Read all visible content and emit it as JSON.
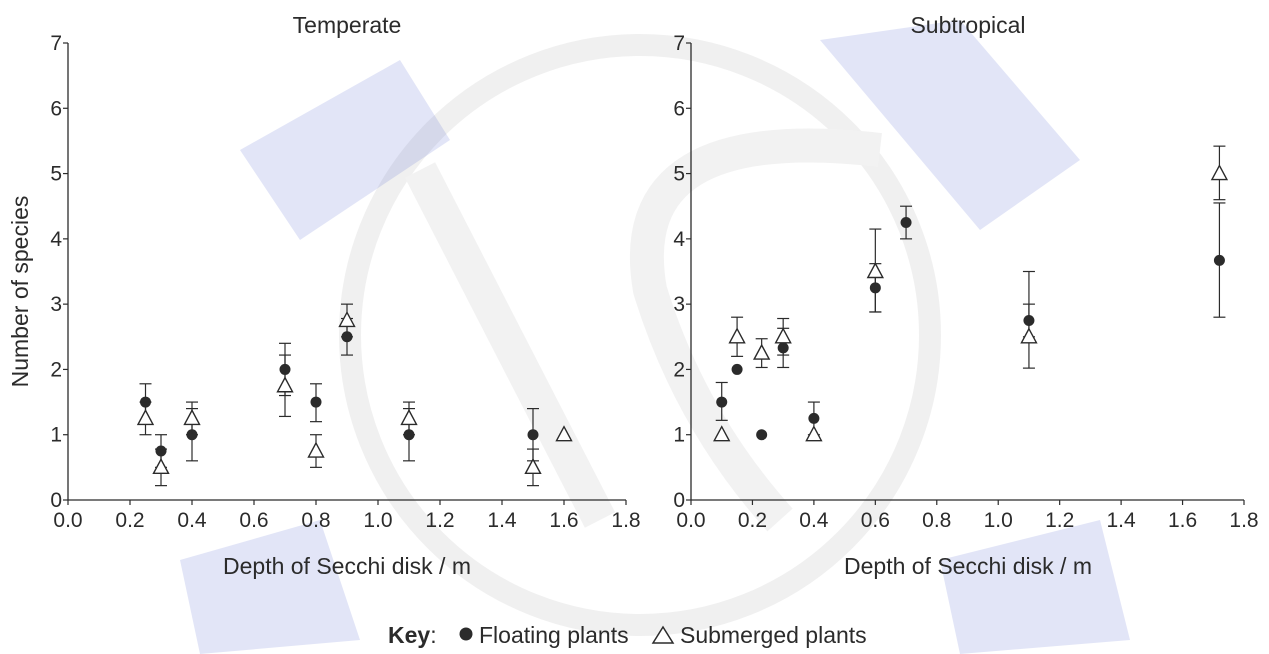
{
  "chart_data": [
    {
      "type": "scatter",
      "title": "Temperate",
      "xlabel": "Depth of Secchi disk / m",
      "ylabel": "Number of species",
      "xlim": [
        0.0,
        1.8
      ],
      "ylim": [
        0,
        7
      ],
      "x_ticks": [
        "0.0",
        "0.2",
        "0.4",
        "0.6",
        "0.8",
        "1.0",
        "1.2",
        "1.4",
        "1.6",
        "1.8"
      ],
      "y_ticks": [
        "0",
        "1",
        "2",
        "3",
        "4",
        "5",
        "6",
        "7"
      ],
      "grid": false,
      "series": [
        {
          "name": "Floating plants",
          "marker": "filled-circle",
          "points": [
            {
              "x": 0.25,
              "y": 1.5,
              "err_low": 1.22,
              "err_high": 1.78
            },
            {
              "x": 0.3,
              "y": 0.75,
              "err_low": 0.5,
              "err_high": 1.0
            },
            {
              "x": 0.4,
              "y": 1.0,
              "err_low": 0.6,
              "err_high": 1.4
            },
            {
              "x": 0.7,
              "y": 2.0,
              "err_low": 1.6,
              "err_high": 2.4
            },
            {
              "x": 0.8,
              "y": 1.5,
              "err_low": 1.2,
              "err_high": 1.78
            },
            {
              "x": 0.9,
              "y": 2.5,
              "err_low": 2.22,
              "err_high": 2.78
            },
            {
              "x": 1.1,
              "y": 1.0,
              "err_low": 0.6,
              "err_high": 1.4
            },
            {
              "x": 1.5,
              "y": 1.0,
              "err_low": 0.6,
              "err_high": 1.4
            }
          ]
        },
        {
          "name": "Submerged plants",
          "marker": "open-triangle",
          "points": [
            {
              "x": 0.25,
              "y": 1.25,
              "err_low": 1.0,
              "err_high": 1.5
            },
            {
              "x": 0.3,
              "y": 0.5,
              "err_low": 0.22,
              "err_high": 0.78
            },
            {
              "x": 0.4,
              "y": 1.25,
              "err_low": 1.0,
              "err_high": 1.5
            },
            {
              "x": 0.7,
              "y": 1.75,
              "err_low": 1.28,
              "err_high": 2.22
            },
            {
              "x": 0.8,
              "y": 0.75,
              "err_low": 0.5,
              "err_high": 1.0
            },
            {
              "x": 0.9,
              "y": 2.75,
              "err_low": 2.5,
              "err_high": 3.0
            },
            {
              "x": 1.1,
              "y": 1.25,
              "err_low": 1.0,
              "err_high": 1.5
            },
            {
              "x": 1.5,
              "y": 0.5,
              "err_low": 0.22,
              "err_high": 0.78
            },
            {
              "x": 1.6,
              "y": 1.0
            }
          ]
        }
      ]
    },
    {
      "type": "scatter",
      "title": "Subtropical",
      "xlabel": "Depth of Secchi disk / m",
      "ylabel": "",
      "xlim": [
        0.0,
        1.8
      ],
      "ylim": [
        0,
        7
      ],
      "x_ticks": [
        "0.0",
        "0.2",
        "0.4",
        "0.6",
        "0.8",
        "1.0",
        "1.2",
        "1.4",
        "1.6",
        "1.8"
      ],
      "y_ticks": [
        "0",
        "1",
        "2",
        "3",
        "4",
        "5",
        "6",
        "7"
      ],
      "grid": false,
      "series": [
        {
          "name": "Floating plants",
          "marker": "filled-circle",
          "points": [
            {
              "x": 0.1,
              "y": 1.5,
              "err_low": 1.22,
              "err_high": 1.8
            },
            {
              "x": 0.15,
              "y": 2.0,
              "err_low": 2.0,
              "err_high": 2.0
            },
            {
              "x": 0.23,
              "y": 1.0
            },
            {
              "x": 0.3,
              "y": 2.33,
              "err_low": 2.03,
              "err_high": 2.63
            },
            {
              "x": 0.4,
              "y": 1.25,
              "err_low": 1.0,
              "err_high": 1.5
            },
            {
              "x": 0.6,
              "y": 3.25,
              "err_low": 2.88,
              "err_high": 3.62
            },
            {
              "x": 0.7,
              "y": 4.25,
              "err_low": 4.0,
              "err_high": 4.5
            },
            {
              "x": 1.1,
              "y": 2.75,
              "err_low": 2.5,
              "err_high": 3.0
            },
            {
              "x": 1.72,
              "y": 3.67,
              "err_low": 2.8,
              "err_high": 4.55
            }
          ]
        },
        {
          "name": "Submerged plants",
          "marker": "open-triangle",
          "points": [
            {
              "x": 0.1,
              "y": 1.0
            },
            {
              "x": 0.15,
              "y": 2.5,
              "err_low": 2.2,
              "err_high": 2.8
            },
            {
              "x": 0.23,
              "y": 2.25,
              "err_low": 2.03,
              "err_high": 2.47
            },
            {
              "x": 0.3,
              "y": 2.5,
              "err_low": 2.22,
              "err_high": 2.78
            },
            {
              "x": 0.4,
              "y": 1.0
            },
            {
              "x": 0.6,
              "y": 3.5,
              "err_low": 2.88,
              "err_high": 4.15
            },
            {
              "x": 1.1,
              "y": 2.5,
              "err_low": 2.02,
              "err_high": 3.5
            },
            {
              "x": 1.72,
              "y": 5.0,
              "err_low": 4.6,
              "err_high": 5.42
            }
          ]
        }
      ]
    }
  ],
  "key": {
    "label": "Key",
    "separator": ":",
    "floating_symbol": "●",
    "floating_label": "Floating plants",
    "submerged_symbol": "△",
    "submerged_label": "Submerged plants"
  }
}
